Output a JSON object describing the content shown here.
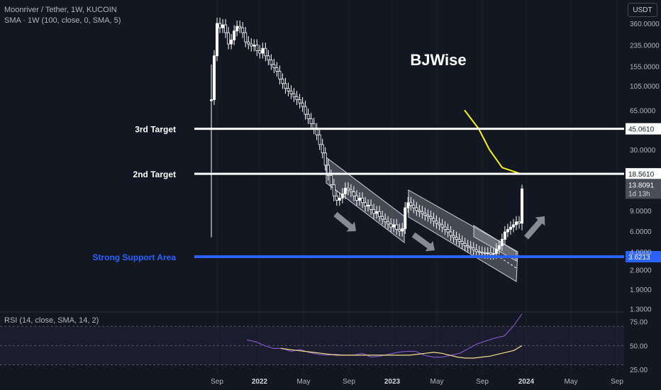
{
  "header": {
    "symbol_line": "Moonriver / Tether, 1W, KUCOIN",
    "indicator_line": "SMA · 1W (100, close, 0, SMA, 5)",
    "rsi_line": "RSI (14, close, SMA, 14, 2)",
    "unit": "USDT"
  },
  "watermark": "BJWise",
  "colors": {
    "background": "#131722",
    "candle_up": "#ffffff",
    "candle_down": "#ffffff",
    "target_line": "#ffffff",
    "support_line": "#2962ff",
    "sma_line": "#f5f51b",
    "rsi_line": "#7e57c2",
    "rsi_ma": "#f5e08a"
  },
  "chart_data": [
    {
      "type": "candlestick",
      "y_scale": "log",
      "ylim": [
        1.3,
        420
      ],
      "y_ticks": [
        {
          "value": 360,
          "label": "360.0000"
        },
        {
          "value": 235,
          "label": "235.0000"
        },
        {
          "value": 155,
          "label": "155.0000"
        },
        {
          "value": 105,
          "label": "105.0000"
        },
        {
          "value": 65,
          "label": "65.0000"
        },
        {
          "value": 30,
          "label": "30.0000"
        },
        {
          "value": 9,
          "label": "9.0000"
        },
        {
          "value": 6,
          "label": "6.0000"
        },
        {
          "value": 4,
          "label": "4.0000"
        },
        {
          "value": 2.8,
          "label": "2.8000"
        },
        {
          "value": 1.9,
          "label": "1.9000"
        },
        {
          "value": 1.3,
          "label": "1.3000"
        }
      ],
      "x_ticks": [
        {
          "label": "Sep",
          "bold": false
        },
        {
          "label": "2022",
          "bold": true
        },
        {
          "label": "May",
          "bold": false
        },
        {
          "label": "Sep",
          "bold": false
        },
        {
          "label": "2023",
          "bold": true
        },
        {
          "label": "May",
          "bold": false
        },
        {
          "label": "Sep",
          "bold": false
        },
        {
          "label": "2024",
          "bold": true
        },
        {
          "label": "May",
          "bold": false
        },
        {
          "label": "Sep",
          "bold": false
        }
      ],
      "levels": [
        {
          "label": "3rd Target",
          "value": 45.061,
          "value_label": "45.0610",
          "color": "#ffffff",
          "style": "target"
        },
        {
          "label": "2nd Target",
          "value": 18.561,
          "value_label": "18.5610",
          "color": "#ffffff",
          "style": "target"
        },
        {
          "label": "Strong Support Area",
          "value": 3.6213,
          "value_label": "3.6213",
          "color": "#2962ff",
          "style": "support"
        }
      ],
      "last_price": {
        "value": 13.8091,
        "value_label": "13.8091",
        "countdown": "1d 13h"
      },
      "closes": [
        80,
        190,
        360,
        330,
        350,
        300,
        240,
        260,
        310,
        340,
        330,
        300,
        250,
        240,
        230,
        235,
        210,
        200,
        220,
        190,
        175,
        160,
        150,
        140,
        120,
        110,
        100,
        95,
        90,
        85,
        80,
        75,
        70,
        60,
        55,
        50,
        45,
        40,
        33,
        28,
        22,
        18,
        15,
        12,
        11,
        11.5,
        12.5,
        14,
        13.5,
        13,
        12,
        11,
        11.5,
        10.5,
        9.8,
        10,
        9.2,
        8.5,
        8.8,
        8,
        7.6,
        7.2,
        6.9,
        6.5,
        6.8,
        6.2,
        6,
        6.3,
        9.5,
        10.5,
        10,
        9.5,
        9,
        8.8,
        8.5,
        8.2,
        8,
        7.7,
        7.3,
        7,
        6.8,
        6.5,
        6.2,
        5.9,
        5.5,
        5.3,
        5.1,
        4.9,
        4.7,
        4.5,
        4.4,
        4.3,
        4.15,
        4,
        3.95,
        3.9,
        3.85,
        3.9,
        3.8,
        3.85,
        4.2,
        4.5,
        5.1,
        5.9,
        6.2,
        6.5,
        6.8,
        7.2,
        7,
        13.8091
      ],
      "sma": [
        [
          65,
          80
        ],
        [
          45,
          52
        ],
        [
          30,
          32
        ],
        [
          21,
          21
        ],
        [
          18.56,
          18.56
        ]
      ],
      "rsi": {
        "ylim": [
          20,
          85
        ],
        "bands": [
          70,
          50,
          30
        ],
        "y_ticks": [
          {
            "value": 75,
            "label": "75.00"
          },
          {
            "value": 50,
            "label": "50.00"
          },
          {
            "value": 25,
            "label": "25.00"
          }
        ],
        "line": [
          56,
          54,
          50,
          47,
          47,
          44,
          46,
          43,
          41,
          40,
          41,
          40,
          40,
          42,
          38,
          39,
          41,
          43,
          44,
          44,
          40,
          38,
          38,
          40,
          42,
          47,
          52,
          55,
          58,
          60,
          70,
          83
        ],
        "ma": [
          47,
          46,
          45,
          44,
          43,
          42,
          41,
          40,
          40,
          40,
          40,
          40,
          40,
          40,
          40,
          40,
          40,
          41,
          42,
          43,
          42,
          40,
          38,
          37,
          37,
          38,
          39,
          41,
          43,
          45,
          50
        ]
      }
    }
  ]
}
